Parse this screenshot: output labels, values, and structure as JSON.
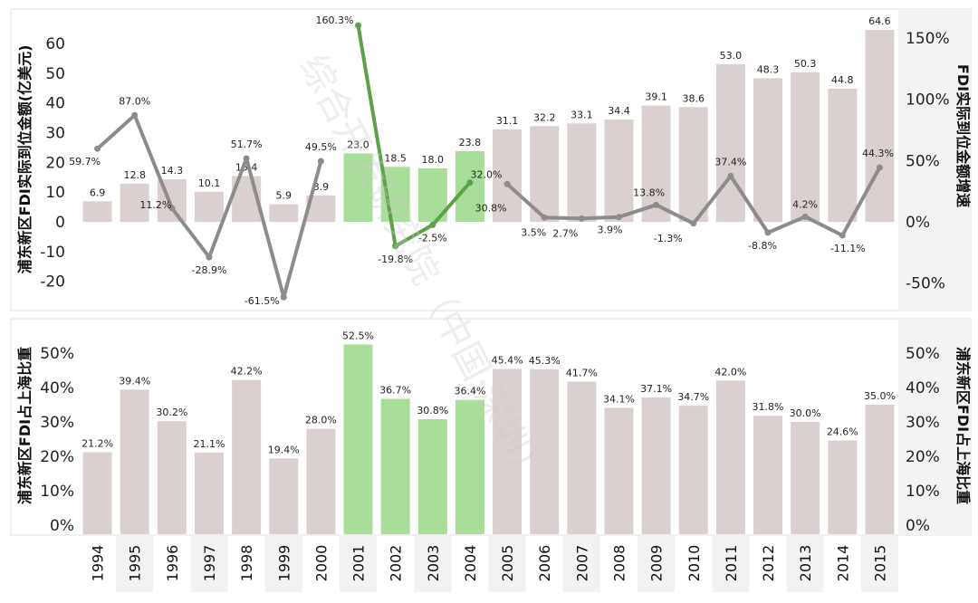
{
  "chart_data": [
    {
      "type": "bar",
      "categories": [
        "1994",
        "1995",
        "1996",
        "1997",
        "1998",
        "1999",
        "2000",
        "2001",
        "2002",
        "2003",
        "2004",
        "2005",
        "2006",
        "2007",
        "2008",
        "2009",
        "2010",
        "2011",
        "2012",
        "2013",
        "2014",
        "2015"
      ],
      "series": [
        {
          "values": [
            6.9,
            12.8,
            14.3,
            10.1,
            15.4,
            5.9,
            8.9,
            23.0,
            18.5,
            18.0,
            23.8,
            31.1,
            32.2,
            33.1,
            34.4,
            39.1,
            38.6,
            53.0,
            48.3,
            50.3,
            44.8,
            64.6
          ]
        },
        {
          "values": [
            59.7,
            87.0,
            11.2,
            -28.9,
            51.7,
            -61.5,
            49.5,
            160.3,
            -19.8,
            -2.5,
            32.0,
            30.8,
            3.5,
            2.7,
            3.9,
            13.8,
            -1.3,
            37.4,
            -8.8,
            4.2,
            -11.1,
            44.3
          ]
        }
      ],
      "bar_labels": [
        "6.9",
        "12.8",
        "14.3",
        "10.1",
        "15.4",
        "5.9",
        "8.9",
        "23.0",
        "18.5",
        "18.0",
        "23.8",
        "31.1",
        "32.2",
        "33.1",
        "34.4",
        "39.1",
        "38.6",
        "53.0",
        "48.3",
        "50.3",
        "44.8",
        "64.6"
      ],
      "line_labels": [
        "59.7%",
        "87.0%",
        "11.2%",
        "-28.9%",
        "51.7%",
        "-61.5%",
        "49.5%",
        "160.3%",
        "-19.8%",
        "-2.5%",
        "32.0%",
        "30.8%",
        "3.5%",
        "2.7%",
        "3.9%",
        "13.8%",
        "-1.3%",
        "37.4%",
        "-8.8%",
        "4.2%",
        "-11.1%",
        "44.3%"
      ],
      "ylabel": "浦东新区FDI实际到位金额(亿美元)",
      "y2label": "FDI实际到位金额增速",
      "ylim": [
        -27,
        71
      ],
      "y2lim": [
        -61.5,
        183
      ],
      "yticks": [
        "60",
        "50",
        "40",
        "30",
        "20",
        "10",
        "0",
        "-10",
        "-20"
      ],
      "y2ticks": [
        "150%",
        "100%",
        "50%",
        "0%",
        "-50%"
      ],
      "highlight_range": [
        "2001",
        "2004"
      ],
      "colors": {
        "bar": "#d9d0cf",
        "bar_highlight": "#a9dd9a",
        "line": "#8c8c8c",
        "line_highlight": "#5ca04a"
      }
    },
    {
      "type": "bar",
      "categories": [
        "1994",
        "1995",
        "1996",
        "1997",
        "1998",
        "1999",
        "2000",
        "2001",
        "2002",
        "2003",
        "2004",
        "2005",
        "2006",
        "2007",
        "2008",
        "2009",
        "2010",
        "2011",
        "2012",
        "2013",
        "2014",
        "2015"
      ],
      "series": [
        {
          "values": [
            21.2,
            39.4,
            30.2,
            21.1,
            42.2,
            19.4,
            28.0,
            52.5,
            36.7,
            30.8,
            36.4,
            45.4,
            45.3,
            41.7,
            34.1,
            37.1,
            34.7,
            42.0,
            31.8,
            30.0,
            24.6,
            35.0
          ]
        }
      ],
      "bar_labels": [
        "21.2%",
        "39.4%",
        "30.2%",
        "21.1%",
        "42.2%",
        "19.4%",
        "28.0%",
        "52.5%",
        "36.7%",
        "30.8%",
        "36.4%",
        "45.4%",
        "45.3%",
        "41.7%",
        "34.1%",
        "37.1%",
        "34.7%",
        "42.0%",
        "31.8%",
        "30.0%",
        "24.6%",
        "35.0%"
      ],
      "ylabel": "浦东新区FDI占上海比重",
      "y2label": "浦东新区FDI占上海比重",
      "ylim": [
        -3,
        57
      ],
      "yticks": [
        "50%",
        "40%",
        "30%",
        "20%",
        "10%",
        "0%"
      ],
      "highlight_range": [
        "2001",
        "2004"
      ],
      "colors": {
        "bar": "#d9d0cf",
        "bar_highlight": "#a9dd9a"
      }
    }
  ],
  "watermark": "综合开发研究院（中国·深圳）"
}
